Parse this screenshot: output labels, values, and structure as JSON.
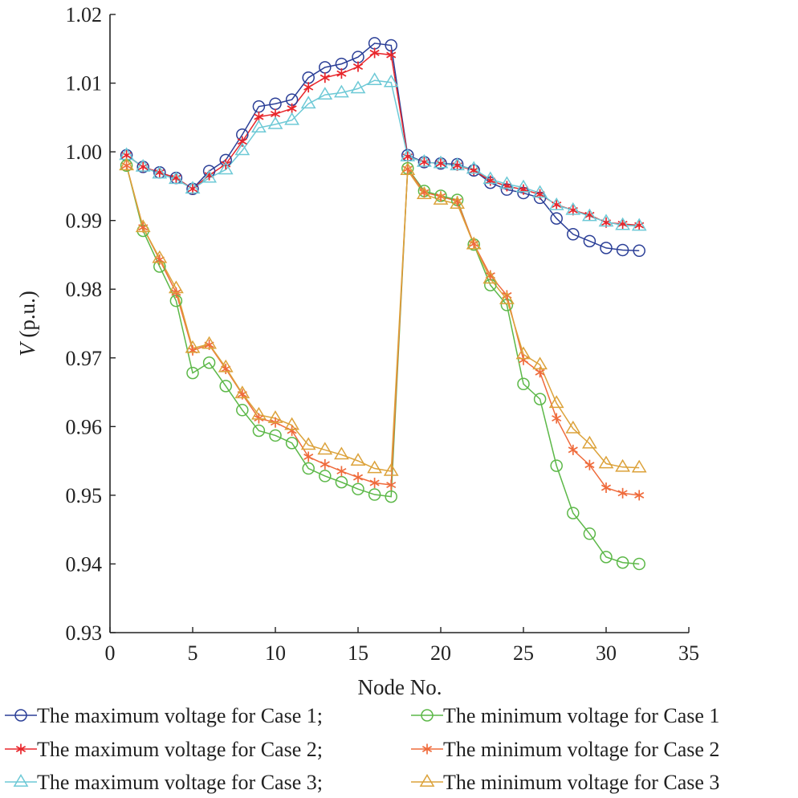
{
  "chart_data": {
    "type": "line",
    "xlabel": "Node No.",
    "ylabel_italic": "V",
    "ylabel_rest": " (p.u.)",
    "xlim": [
      0,
      35
    ],
    "ylim": [
      0.93,
      1.02
    ],
    "xticks": [
      0,
      5,
      10,
      15,
      20,
      25,
      30,
      35
    ],
    "yticks": [
      0.93,
      0.94,
      0.95,
      0.96,
      0.97,
      0.98,
      0.99,
      1.0,
      1.01,
      1.02
    ],
    "xtick_labels": [
      "0",
      "5",
      "10",
      "15",
      "20",
      "25",
      "30",
      "35"
    ],
    "ytick_labels": [
      "0.93",
      "0.94",
      "0.95",
      "0.96",
      "0.97",
      "0.98",
      "0.99",
      "1.00",
      "1.01",
      "1.02"
    ],
    "grid": false,
    "legend_position": "bottom",
    "x": [
      1,
      2,
      3,
      4,
      5,
      6,
      7,
      8,
      9,
      10,
      11,
      12,
      13,
      14,
      15,
      16,
      17,
      18,
      19,
      20,
      21,
      22,
      23,
      24,
      25,
      26,
      27,
      28,
      29,
      30,
      31,
      32
    ],
    "series": [
      {
        "name": "The maximum voltage for Case 1;",
        "color": "#2b3f97",
        "marker": "circle",
        "values": [
          0.9995,
          0.9978,
          0.997,
          0.9962,
          0.9946,
          0.9972,
          0.9988,
          1.0025,
          1.0066,
          1.007,
          1.0076,
          1.0108,
          1.0123,
          1.0128,
          1.0138,
          1.0158,
          1.0155,
          0.9995,
          0.9985,
          0.9983,
          0.9982,
          0.9973,
          0.9955,
          0.9945,
          0.994,
          0.9933,
          0.9903,
          0.988,
          0.987,
          0.986,
          0.9857,
          0.9856
        ]
      },
      {
        "name": "The maximum voltage for Case 2;",
        "color": "#e8262b",
        "marker": "star",
        "values": [
          0.9995,
          0.9978,
          0.997,
          0.9962,
          0.9946,
          0.9966,
          0.9982,
          1.0015,
          1.0051,
          1.0055,
          1.0063,
          1.0094,
          1.0108,
          1.0114,
          1.0124,
          1.0144,
          1.0141,
          0.9993,
          0.9985,
          0.9983,
          0.998,
          0.9973,
          0.9958,
          0.995,
          0.9945,
          0.9938,
          0.9923,
          0.9915,
          0.9908,
          0.9897,
          0.9895,
          0.9893
        ]
      },
      {
        "name": "The maximum voltage for Case 3;",
        "color": "#6dc9d6",
        "marker": "triangle",
        "values": [
          0.9995,
          0.9978,
          0.9968,
          0.996,
          0.9946,
          0.9962,
          0.9974,
          1.0002,
          1.0035,
          1.004,
          1.0046,
          1.007,
          1.0083,
          1.0086,
          1.0092,
          1.0104,
          1.0101,
          0.9993,
          0.9985,
          0.9983,
          0.998,
          0.9975,
          0.996,
          0.9953,
          0.9948,
          0.994,
          0.9922,
          0.9915,
          0.9906,
          0.9898,
          0.9893,
          0.9892
        ]
      },
      {
        "name": "The minimum voltage for Case 1",
        "color": "#5cb848",
        "marker": "circle",
        "values": [
          0.998,
          0.9885,
          0.9833,
          0.9783,
          0.9678,
          0.9693,
          0.9659,
          0.9624,
          0.9594,
          0.9587,
          0.9576,
          0.9539,
          0.9528,
          0.9519,
          0.9509,
          0.9501,
          0.9498,
          0.9976,
          0.9943,
          0.9936,
          0.993,
          0.9865,
          0.9806,
          0.9777,
          0.9662,
          0.964,
          0.9543,
          0.9474,
          0.9444,
          0.941,
          0.9402,
          0.94
        ]
      },
      {
        "name": "The minimum voltage for Case 2",
        "color": "#ef6b3c",
        "marker": "star",
        "values": [
          0.998,
          0.989,
          0.9843,
          0.9795,
          0.9711,
          0.9719,
          0.9684,
          0.9647,
          0.9612,
          0.9606,
          0.9594,
          0.9556,
          0.9545,
          0.9535,
          0.9526,
          0.9518,
          0.9515,
          0.9975,
          0.9941,
          0.9935,
          0.9928,
          0.9866,
          0.982,
          0.9791,
          0.9697,
          0.9679,
          0.9612,
          0.9566,
          0.9544,
          0.9511,
          0.9503,
          0.95
        ]
      },
      {
        "name": "The minimum voltage for Case 3",
        "color": "#dca23a",
        "marker": "triangle",
        "values": [
          0.998,
          0.989,
          0.9845,
          0.9801,
          0.9714,
          0.972,
          0.9686,
          0.9648,
          0.9617,
          0.9612,
          0.9602,
          0.9573,
          0.9566,
          0.9559,
          0.955,
          0.9539,
          0.9535,
          0.9973,
          0.9938,
          0.993,
          0.9924,
          0.9865,
          0.9815,
          0.9785,
          0.9705,
          0.969,
          0.9634,
          0.9597,
          0.9575,
          0.9546,
          0.9541,
          0.954
        ]
      }
    ]
  }
}
